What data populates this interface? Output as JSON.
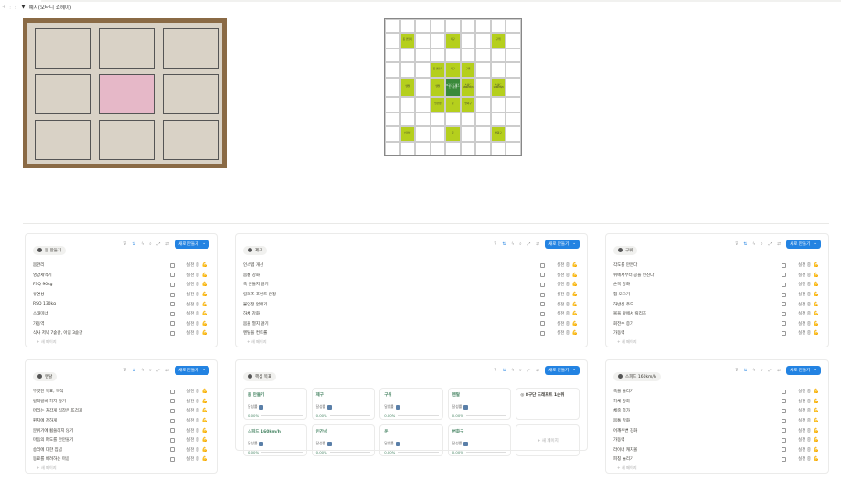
{
  "toggle": {
    "title": "예시(오타니 쇼헤이)"
  },
  "common": {
    "new_button": "새로 만들기",
    "status": "실천 중",
    "emoji": "💪",
    "new_page": "+ 새 페이지"
  },
  "mandala": {
    "center": "8구단 드래프트 1순위",
    "highlight": [
      "몸 만들기",
      "제구",
      "구위",
      "멘탈",
      "스피드 160km/h",
      "인간성",
      "운",
      "변화구"
    ]
  },
  "lists": [
    {
      "title": "몸 만들기",
      "items": [
        "몸관리",
        "영양제먹기",
        "FSQ 90kg",
        "유연성",
        "RSQ 130kg",
        "스태미너",
        "가동역",
        "식사 저녁 7숟갈, 아침 3숟갈"
      ]
    },
    {
      "title": "제구",
      "items": [
        "인스텝 개선",
        "몸통 강화",
        "축 흔들지 않기",
        "릴리즈 포인트 안정",
        "불안정 없애기",
        "하체 강화",
        "몸을 열지 않기",
        "멘탈을 컨트롤"
      ]
    },
    {
      "title": "구위",
      "items": [
        "각도를 만든다",
        "위에서부터 공을 던진다",
        "손목 강화",
        "힘 모으기",
        "하반신 주도",
        "볼을 앞에서 릴리즈",
        "회전수 증가",
        "가동력"
      ]
    },
    {
      "title": "멘탈",
      "items": [
        "뚜렷한 목표, 목적",
        "일희일비 하지 않기",
        "머리는 차갑게 심장은 뜨겁게",
        "핀치에 강하게",
        "분위기에 휩쓸리지 않기",
        "마음의 파도를 안만들기",
        "승리에 대한 집념",
        "동료를 배려하는 마음"
      ]
    },
    {
      "title": "스피드 160km/h",
      "items": [
        "축을 돌리기",
        "하체 강화",
        "체중 증가",
        "몸통 강화",
        "어깨주변 강화",
        "가동력",
        "라이너 캐치볼",
        "피칭 늘리기"
      ]
    }
  ],
  "core": {
    "title": "핵심 목표",
    "progress_label": "달성률",
    "cards": [
      {
        "title": "몸 만들기",
        "progress": "0.00%"
      },
      {
        "title": "제구",
        "progress": "0.00%"
      },
      {
        "title": "구위",
        "progress": "0.00%"
      },
      {
        "title": "멘탈",
        "progress": "0.00%"
      },
      {
        "title": "8구단 드래프트 1순위",
        "goal": true
      },
      {
        "title": "스피드 160km/h",
        "progress": "0.00%"
      },
      {
        "title": "인간성",
        "progress": "0.00%"
      },
      {
        "title": "운",
        "progress": "0.00%"
      },
      {
        "title": "변화구",
        "progress": "0.00%"
      }
    ],
    "new_page": "+ 새 페이지"
  }
}
